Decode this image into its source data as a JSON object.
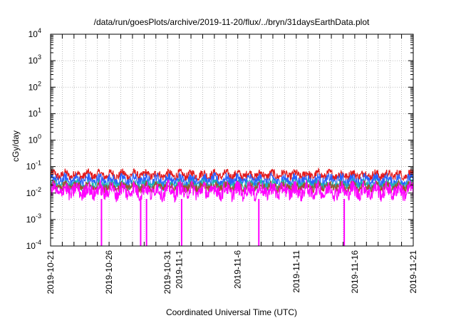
{
  "chart_data": {
    "type": "line",
    "title": "/data/run/goesPlots/archive/2019-11-20/flux/../bryn/31daysEarthData.plot",
    "xlabel": "Coordinated Universal Time (UTC)",
    "ylabel": "cGy/day",
    "y_scale": "log",
    "ylim": [
      0.0001,
      10000
    ],
    "y_ticks": [
      {
        "value": 0.0001,
        "base": "10",
        "exp": "-4"
      },
      {
        "value": 0.001,
        "base": "10",
        "exp": "-3"
      },
      {
        "value": 0.01,
        "base": "10",
        "exp": "-2"
      },
      {
        "value": 0.1,
        "base": "10",
        "exp": "-1"
      },
      {
        "value": 1,
        "base": "10",
        "exp": "0"
      },
      {
        "value": 10,
        "base": "10",
        "exp": "1"
      },
      {
        "value": 100,
        "base": "10",
        "exp": "2"
      },
      {
        "value": 1000,
        "base": "10",
        "exp": "3"
      },
      {
        "value": 10000,
        "base": "10",
        "exp": "4"
      }
    ],
    "xlim": [
      "2019-10-21",
      "2019-11-21"
    ],
    "x_ticks": [
      {
        "date": "2019-10-21",
        "label": "2019-10-21"
      },
      {
        "date": "2019-10-26",
        "label": "2019-10-26"
      },
      {
        "date": "2019-10-31",
        "label": "2019-10-31"
      },
      {
        "date": "2019-11-01",
        "label": "2019-11-1"
      },
      {
        "date": "2019-11-06",
        "label": "2019-11-6"
      },
      {
        "date": "2019-11-11",
        "label": "2019-11-11"
      },
      {
        "date": "2019-11-16",
        "label": "2019-11-16"
      },
      {
        "date": "2019-11-21",
        "label": "2019-11-21"
      }
    ],
    "grid": true,
    "series": [
      {
        "color": "#e41a1c",
        "typical_min": 0.028,
        "typical_max": 0.085
      },
      {
        "color": "#2962ff",
        "typical_min": 0.016,
        "typical_max": 0.06
      },
      {
        "color": "#1ab5b5",
        "typical_min": 0.012,
        "typical_max": 0.035
      },
      {
        "color": "#a0522d",
        "typical_min": 0.01,
        "typical_max": 0.03
      },
      {
        "color": "#ff00ff",
        "typical_min": 0.0045,
        "typical_max": 0.032
      }
    ],
    "dropouts": [
      {
        "date": "2019-10-25.35",
        "min": 0.0001
      },
      {
        "date": "2019-10-28.7",
        "min": 0.0001
      },
      {
        "date": "2019-10-29.2",
        "min": 0.0001
      },
      {
        "date": "2019-11-01.2",
        "min": 0.0001
      },
      {
        "date": "2019-11-07.8",
        "min": 0.0001
      },
      {
        "date": "2019-11-15.1",
        "min": 0.0001
      }
    ]
  }
}
